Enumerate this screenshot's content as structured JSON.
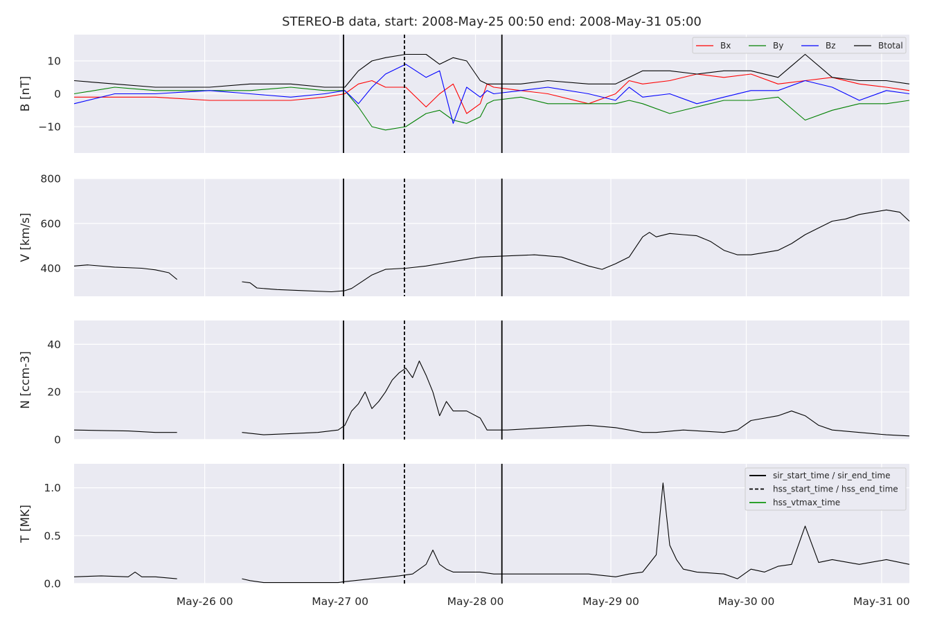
{
  "figure": {
    "title": "STEREO-B data, start: 2008-May-25 00:50  end: 2008-May-31 05:00"
  },
  "chart_data": [
    {
      "type": "line",
      "panel": "magnetic-field",
      "ylabel": "B [nT]",
      "ylim": [
        -18,
        18
      ],
      "yticks": [
        {
          "v": 10,
          "label": "10"
        },
        {
          "v": 0,
          "label": "0"
        },
        {
          "v": -10,
          "label": "−10"
        }
      ],
      "legend_position": "top-right",
      "series": [
        {
          "name": "Bx",
          "color": "#ff0000",
          "x": [
            0,
            0.3,
            0.6,
            1.0,
            1.3,
            1.6,
            1.85,
            2.0,
            2.1,
            2.2,
            2.3,
            2.45,
            2.6,
            2.7,
            2.8,
            2.9,
            3.0,
            3.05,
            3.1,
            3.3,
            3.5,
            3.8,
            4.0,
            4.1,
            4.2,
            4.4,
            4.6,
            4.8,
            5.0,
            5.2,
            5.4,
            5.6,
            5.8,
            6.0,
            6.17
          ],
          "values": [
            -1,
            -1,
            -1,
            -2,
            -2,
            -2,
            -1,
            0,
            3,
            4,
            2,
            2,
            -4,
            0,
            3,
            -6,
            -3,
            3,
            2,
            1,
            0,
            -3,
            0,
            4,
            3,
            4,
            6,
            5,
            6,
            3,
            4,
            5,
            3,
            2,
            1
          ]
        },
        {
          "name": "By",
          "color": "#008000",
          "x": [
            0,
            0.3,
            0.6,
            1.0,
            1.3,
            1.6,
            1.85,
            2.0,
            2.1,
            2.2,
            2.3,
            2.45,
            2.6,
            2.7,
            2.8,
            2.9,
            3.0,
            3.05,
            3.1,
            3.3,
            3.5,
            3.8,
            4.0,
            4.1,
            4.2,
            4.4,
            4.6,
            4.8,
            5.0,
            5.2,
            5.4,
            5.6,
            5.8,
            6.0,
            6.17
          ],
          "values": [
            0,
            2,
            1,
            1,
            1,
            2,
            1,
            1,
            -4,
            -10,
            -11,
            -10,
            -6,
            -5,
            -8,
            -9,
            -7,
            -3,
            -2,
            -1,
            -3,
            -3,
            -3,
            -2,
            -3,
            -6,
            -4,
            -2,
            -2,
            -1,
            -8,
            -5,
            -3,
            -3,
            -2
          ]
        },
        {
          "name": "Bz",
          "color": "#0000ff",
          "x": [
            0,
            0.3,
            0.6,
            1.0,
            1.3,
            1.6,
            1.85,
            2.0,
            2.1,
            2.2,
            2.3,
            2.45,
            2.6,
            2.7,
            2.8,
            2.9,
            3.0,
            3.05,
            3.1,
            3.3,
            3.5,
            3.8,
            4.0,
            4.1,
            4.2,
            4.4,
            4.6,
            4.8,
            5.0,
            5.2,
            5.4,
            5.6,
            5.8,
            6.0,
            6.17
          ],
          "values": [
            -3,
            0,
            0,
            1,
            0,
            -1,
            0,
            1,
            -3,
            2,
            6,
            9,
            5,
            7,
            -9,
            2,
            -1,
            1,
            0,
            1,
            2,
            0,
            -2,
            2,
            -1,
            0,
            -3,
            -1,
            1,
            1,
            4,
            2,
            -2,
            1,
            0
          ]
        },
        {
          "name": "Btotal",
          "color": "#000000",
          "x": [
            0,
            0.3,
            0.6,
            1.0,
            1.3,
            1.6,
            1.85,
            2.0,
            2.1,
            2.2,
            2.3,
            2.45,
            2.6,
            2.7,
            2.8,
            2.9,
            3.0,
            3.05,
            3.1,
            3.3,
            3.5,
            3.8,
            4.0,
            4.1,
            4.2,
            4.4,
            4.6,
            4.8,
            5.0,
            5.2,
            5.4,
            5.6,
            5.8,
            6.0,
            6.17
          ],
          "values": [
            4,
            3,
            2,
            2,
            3,
            3,
            2,
            2,
            7,
            10,
            11,
            12,
            12,
            9,
            11,
            10,
            4,
            3,
            3,
            3,
            4,
            3,
            3,
            5,
            7,
            7,
            6,
            7,
            7,
            5,
            12,
            5,
            4,
            4,
            3
          ]
        }
      ]
    },
    {
      "type": "line",
      "panel": "velocity",
      "ylabel": "V [km/s]",
      "ylim": [
        275,
        800
      ],
      "yticks": [
        {
          "v": 800,
          "label": "800"
        },
        {
          "v": 600,
          "label": "600"
        },
        {
          "v": 400,
          "label": "400"
        }
      ],
      "series": [
        {
          "name": "V",
          "color": "#000000",
          "segments": [
            {
              "x": [
                0,
                0.1,
                0.3,
                0.5,
                0.6,
                0.7,
                0.76
              ],
              "values": [
                410,
                415,
                405,
                400,
                393,
                380,
                350
              ]
            },
            {
              "x": [
                1.24,
                1.3,
                1.35,
                1.5,
                1.7,
                1.9,
                2.0,
                2.05,
                2.1,
                2.2,
                2.3,
                2.45,
                2.6,
                2.8,
                3.0,
                3.2,
                3.4,
                3.6,
                3.8,
                3.9,
                4.0,
                4.1,
                4.2,
                4.25,
                4.3,
                4.4,
                4.5,
                4.6,
                4.7,
                4.8,
                4.9,
                5.0,
                5.1,
                5.2,
                5.3,
                5.4,
                5.5,
                5.6,
                5.7,
                5.8,
                5.9,
                6.0,
                6.1,
                6.17
              ],
              "values": [
                340,
                335,
                312,
                305,
                300,
                295,
                300,
                310,
                330,
                370,
                395,
                400,
                410,
                430,
                450,
                455,
                460,
                450,
                410,
                395,
                420,
                450,
                540,
                560,
                540,
                555,
                550,
                545,
                520,
                480,
                460,
                460,
                470,
                480,
                510,
                550,
                580,
                610,
                620,
                640,
                650,
                660,
                650,
                610
              ]
            }
          ]
        }
      ]
    },
    {
      "type": "line",
      "panel": "density",
      "ylabel": "N [ccm-3]",
      "ylim": [
        0,
        50
      ],
      "yticks": [
        {
          "v": 40,
          "label": "40"
        },
        {
          "v": 20,
          "label": "20"
        },
        {
          "v": 0,
          "label": "0"
        }
      ],
      "series": [
        {
          "name": "N",
          "color": "#000000",
          "segments": [
            {
              "x": [
                0,
                0.2,
                0.4,
                0.6,
                0.76
              ],
              "values": [
                4,
                3.8,
                3.6,
                3,
                3
              ]
            },
            {
              "x": [
                1.24,
                1.4,
                1.6,
                1.8,
                1.95,
                2.0,
                2.05,
                2.1,
                2.15,
                2.2,
                2.25,
                2.3,
                2.35,
                2.4,
                2.45,
                2.5,
                2.55,
                2.6,
                2.65,
                2.7,
                2.75,
                2.8,
                2.9,
                3.0,
                3.05,
                3.2,
                3.5,
                3.8,
                4.0,
                4.2,
                4.3,
                4.5,
                4.8,
                4.9,
                5.0,
                5.2,
                5.3,
                5.4,
                5.5,
                5.6,
                5.8,
                6.0,
                6.17
              ],
              "values": [
                3,
                2,
                2.5,
                3,
                4,
                6,
                12,
                15,
                20,
                13,
                16,
                20,
                25,
                28,
                30,
                26,
                33,
                27,
                20,
                10,
                16,
                12,
                12,
                9,
                4,
                4,
                5,
                6,
                5,
                3,
                3,
                4,
                3,
                4,
                8,
                10,
                12,
                10,
                6,
                4,
                3,
                2,
                1.5
              ]
            }
          ]
        }
      ]
    },
    {
      "type": "line",
      "panel": "temperature",
      "ylabel": "T [MK]",
      "ylim": [
        0,
        1.25
      ],
      "yticks": [
        {
          "v": 1.0,
          "label": "1.0"
        },
        {
          "v": 0.5,
          "label": "0.5"
        },
        {
          "v": 0.0,
          "label": "0.0"
        }
      ],
      "legend_position": "top-right",
      "legend": [
        {
          "label": "sir_start_time / sir_end_time",
          "color": "#000000",
          "dash": false
        },
        {
          "label": "hss_start_time / hss_end_time",
          "color": "#000000",
          "dash": true
        },
        {
          "label": "hss_vtmax_time",
          "color": "#2ca02c",
          "dash": false
        }
      ],
      "series": [
        {
          "name": "T",
          "color": "#000000",
          "segments": [
            {
              "x": [
                0,
                0.2,
                0.4,
                0.45,
                0.5,
                0.6,
                0.76
              ],
              "values": [
                0.07,
                0.08,
                0.07,
                0.12,
                0.07,
                0.07,
                0.05
              ]
            },
            {
              "x": [
                1.24,
                1.3,
                1.4,
                1.6,
                1.8,
                1.95,
                2.0,
                2.2,
                2.4,
                2.5,
                2.6,
                2.65,
                2.7,
                2.75,
                2.8,
                3.0,
                3.1,
                3.2,
                3.4,
                3.6,
                3.8,
                4.0,
                4.1,
                4.2,
                4.3,
                4.35,
                4.4,
                4.45,
                4.5,
                4.6,
                4.8,
                4.9,
                5.0,
                5.1,
                5.2,
                5.3,
                5.4,
                5.5,
                5.6,
                5.8,
                6.0,
                6.17
              ],
              "values": [
                0.05,
                0.03,
                0.01,
                0.01,
                0.01,
                0.01,
                0.02,
                0.05,
                0.08,
                0.1,
                0.2,
                0.35,
                0.2,
                0.15,
                0.12,
                0.12,
                0.1,
                0.1,
                0.1,
                0.1,
                0.1,
                0.07,
                0.1,
                0.12,
                0.3,
                1.05,
                0.4,
                0.25,
                0.15,
                0.12,
                0.1,
                0.05,
                0.15,
                0.12,
                0.18,
                0.2,
                0.6,
                0.22,
                0.25,
                0.2,
                0.25,
                0.2
              ]
            }
          ]
        }
      ]
    }
  ],
  "x_axis": {
    "start": "2008-05-25 00:50",
    "range_days": [
      0,
      6.17
    ],
    "ticks": [
      {
        "day": 0.965,
        "label": "May-26 00"
      },
      {
        "day": 1.965,
        "label": "May-27 00"
      },
      {
        "day": 2.965,
        "label": "May-28 00"
      },
      {
        "day": 3.965,
        "label": "May-29 00"
      },
      {
        "day": 4.965,
        "label": "May-30 00"
      },
      {
        "day": 5.965,
        "label": "May-31 00"
      }
    ]
  },
  "event_lines": [
    {
      "kind": "sir_start_time",
      "day": 1.99,
      "dash": false
    },
    {
      "kind": "hss_start_time",
      "day": 2.44,
      "dash": true
    },
    {
      "kind": "sir_end_time",
      "day": 3.16,
      "dash": false
    }
  ],
  "colors": {
    "panel_bg": "#eaeaf2",
    "grid": "#ffffff"
  }
}
